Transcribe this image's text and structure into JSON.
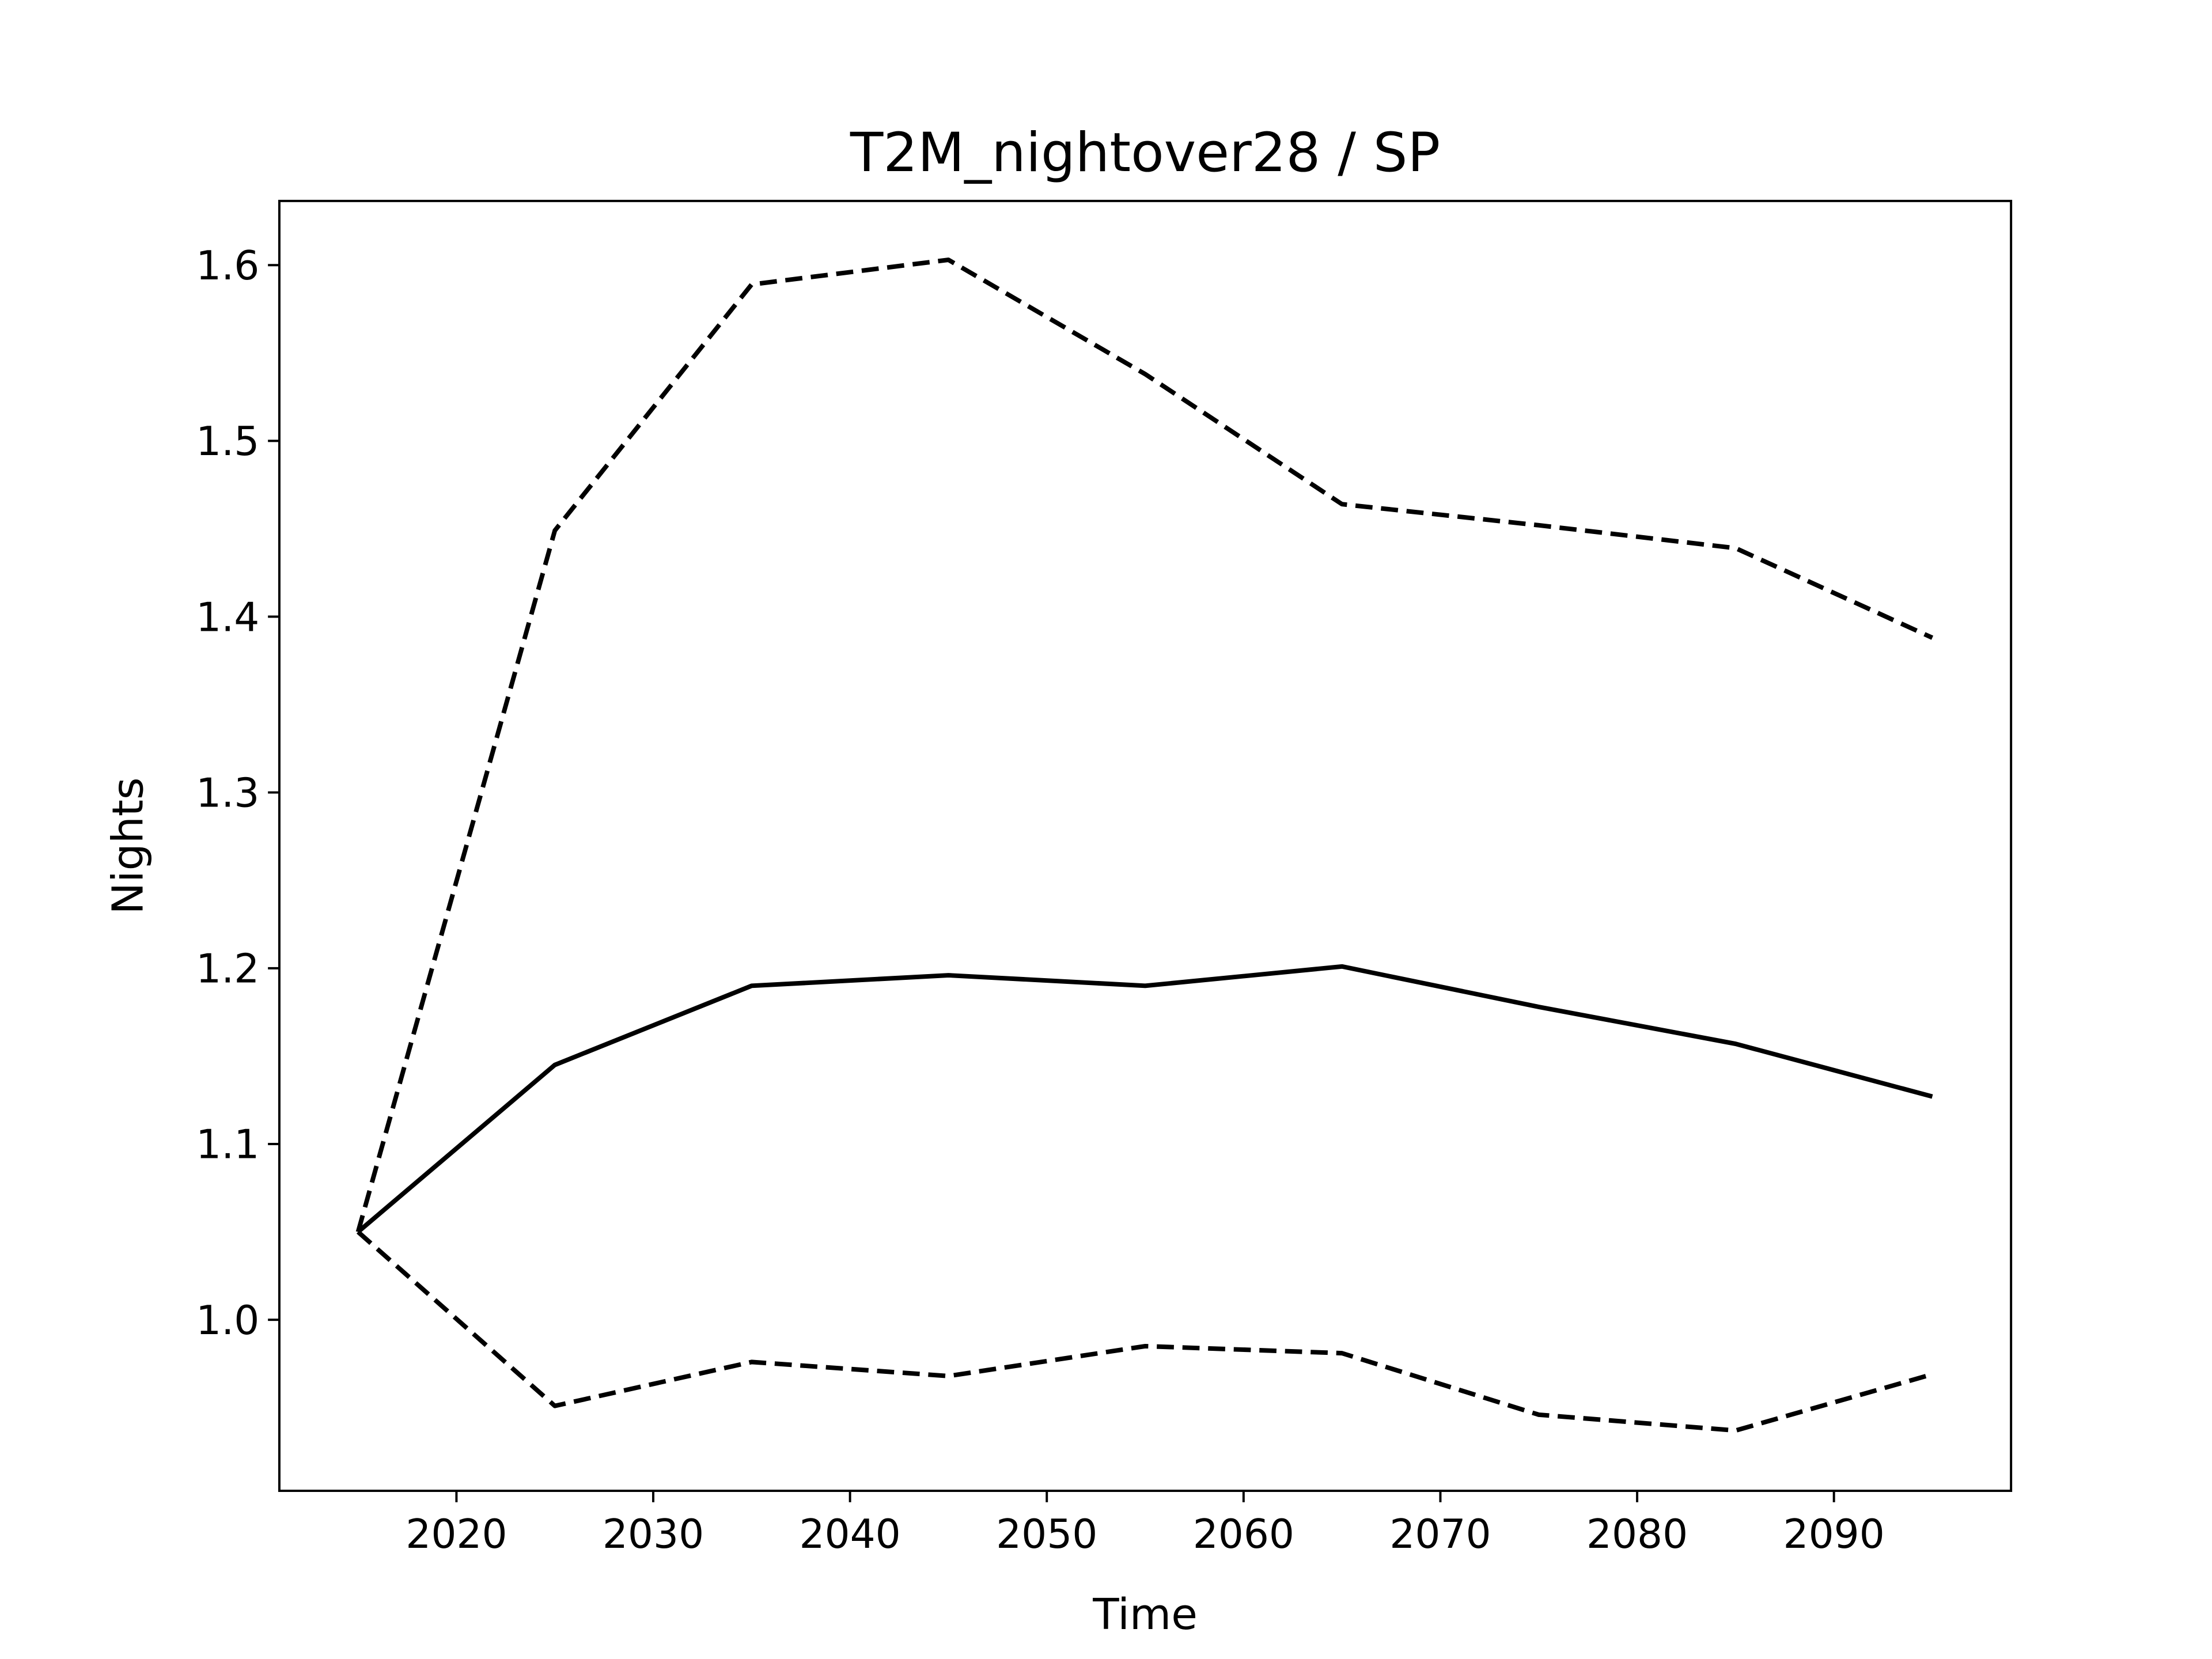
{
  "chart_data": {
    "type": "line",
    "title": "T2M_nightover28 / SP",
    "xlabel": "Time",
    "ylabel": "Nights",
    "x": [
      2015,
      2025,
      2035,
      2045,
      2055,
      2065,
      2075,
      2085,
      2095
    ],
    "series": [
      {
        "color": "#000000",
        "style": "solid",
        "values": [
          1.05,
          1.145,
          1.19,
          1.196,
          1.19,
          1.201,
          1.178,
          1.157,
          1.127
        ]
      },
      {
        "color": "#000000",
        "style": "dashed",
        "values": [
          1.05,
          1.449,
          1.589,
          1.603,
          1.538,
          1.464,
          1.452,
          1.439,
          1.388
        ]
      },
      {
        "color": "#000000",
        "style": "dashed",
        "values": [
          1.05,
          0.951,
          0.976,
          0.968,
          0.985,
          0.981,
          0.946,
          0.937,
          0.969
        ]
      }
    ],
    "xlim": [
      2011,
      2099
    ],
    "xticks": [
      2020,
      2030,
      2040,
      2050,
      2060,
      2070,
      2080,
      2090
    ],
    "ylim": [
      0.9027,
      1.6365
    ],
    "yticks": [
      {
        "value": 1.0,
        "label": "1.0"
      },
      1.1,
      1.2,
      1.3,
      1.4,
      1.5,
      1.6
    ],
    "grid": false
  }
}
